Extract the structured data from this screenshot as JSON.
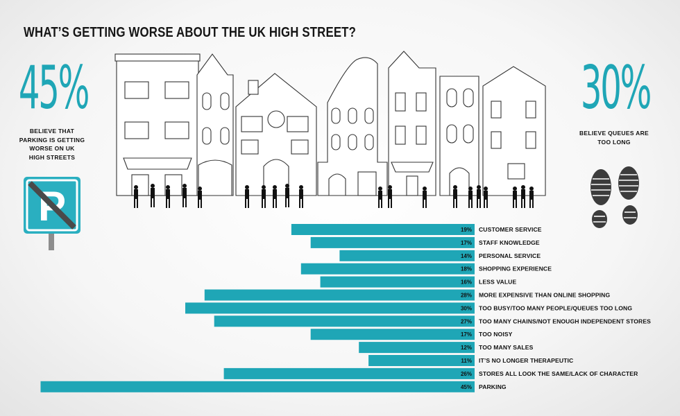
{
  "title": "WHAT’S GETTING WORSE ABOUT THE UK HIGH STREET?",
  "left_stat": {
    "value": "45%",
    "caption_lines": [
      "BELIEVE THAT",
      "PARKING IS GETTING",
      "WORSE ON UK",
      "HIGH STREETS"
    ]
  },
  "right_stat": {
    "value": "30%",
    "caption_lines": [
      "BELIEVE QUEUES ARE",
      "TOO LONG"
    ]
  },
  "parking_sign": {
    "letter": "P"
  },
  "colors": {
    "accent": "#1fa6b6",
    "text": "#111111",
    "sign_background": "#2aafc0"
  },
  "chart_data": {
    "type": "bar",
    "orientation": "horizontal",
    "categories": [
      "CUSTOMER SERVICE",
      "STAFF KNOWLEDGE",
      "PERSONAL SERVICE",
      "SHOPPING EXPERIENCE",
      "LESS VALUE",
      "MORE EXPENSIVE THAN ONLINE SHOPPING",
      "TOO BUSY/TOO MANY PEOPLE/QUEUES TOO LONG",
      "TOO MANY CHAINS/NOT ENOUGH INDEPENDENT STORES",
      "TOO NOISY",
      "TOO MANY SALES",
      "IT’S NO LONGER THERAPEUTIC",
      "STORES ALL LOOK THE SAME/LACK OF CHARACTER",
      "PARKING"
    ],
    "values": [
      19,
      17,
      14,
      18,
      16,
      28,
      30,
      27,
      17,
      12,
      11,
      26,
      45
    ],
    "value_labels": [
      "19%",
      "17%",
      "14%",
      "18%",
      "16%",
      "28%",
      "30%",
      "27%",
      "17%",
      "12%",
      "11%",
      "26%",
      "45%"
    ],
    "bar_color": "#1fa6b6",
    "bars_grow": "leftward from labels",
    "xlim": [
      0,
      45
    ]
  }
}
